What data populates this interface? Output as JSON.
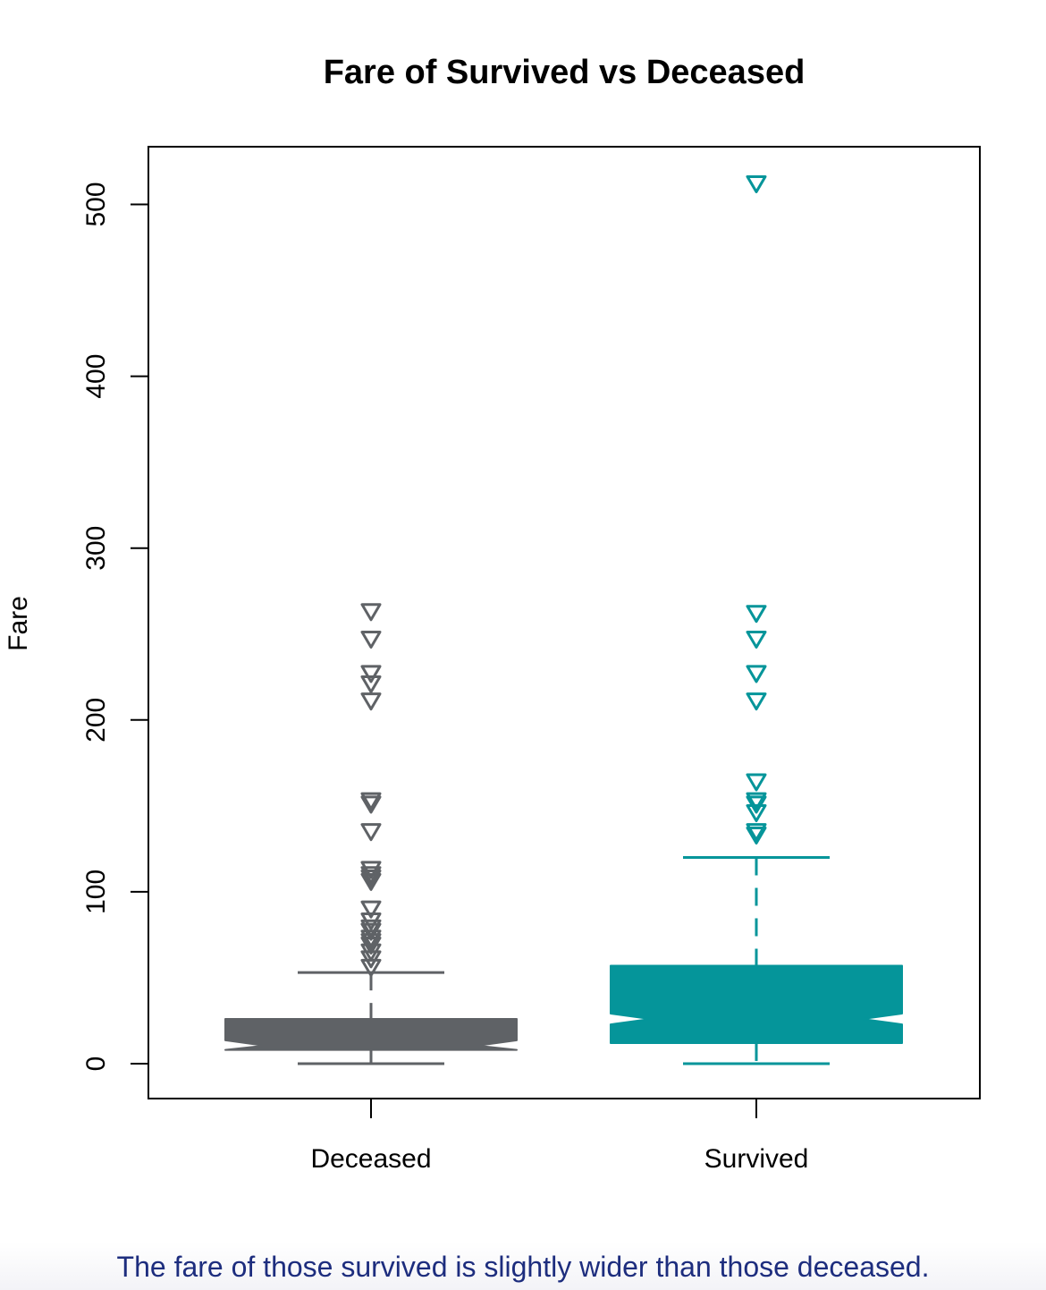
{
  "chart_data": {
    "type": "boxplot",
    "title": "Fare of Survived vs Deceased",
    "xlabel": "",
    "ylabel": "Fare",
    "ylim": [
      -20,
      535
    ],
    "yticks": [
      0,
      100,
      200,
      300,
      400,
      500
    ],
    "notched": true,
    "outlier_marker": "down-triangle",
    "grid": false,
    "legend": "none",
    "categories": [
      "Deceased",
      "Survived"
    ],
    "series": [
      {
        "category": "Deceased",
        "color": "#5f6266",
        "whisker_low": 0,
        "q1": 8,
        "median": 10.5,
        "q3": 26,
        "whisker_high": 53,
        "outliers": [
          56,
          61,
          65,
          69,
          71,
          73,
          77,
          79,
          83,
          90,
          106,
          108,
          110,
          113,
          135,
          151,
          153,
          211,
          221,
          227,
          247,
          263
        ]
      },
      {
        "category": "Survived",
        "color": "#05959a",
        "whisker_low": 0,
        "q1": 12,
        "median": 26,
        "q3": 57,
        "whisker_high": 120,
        "outliers": [
          133,
          135,
          146,
          151,
          153,
          164,
          211,
          227,
          247,
          262,
          512
        ]
      }
    ]
  },
  "caption": "The fare of those survived is slightly wider than those deceased."
}
